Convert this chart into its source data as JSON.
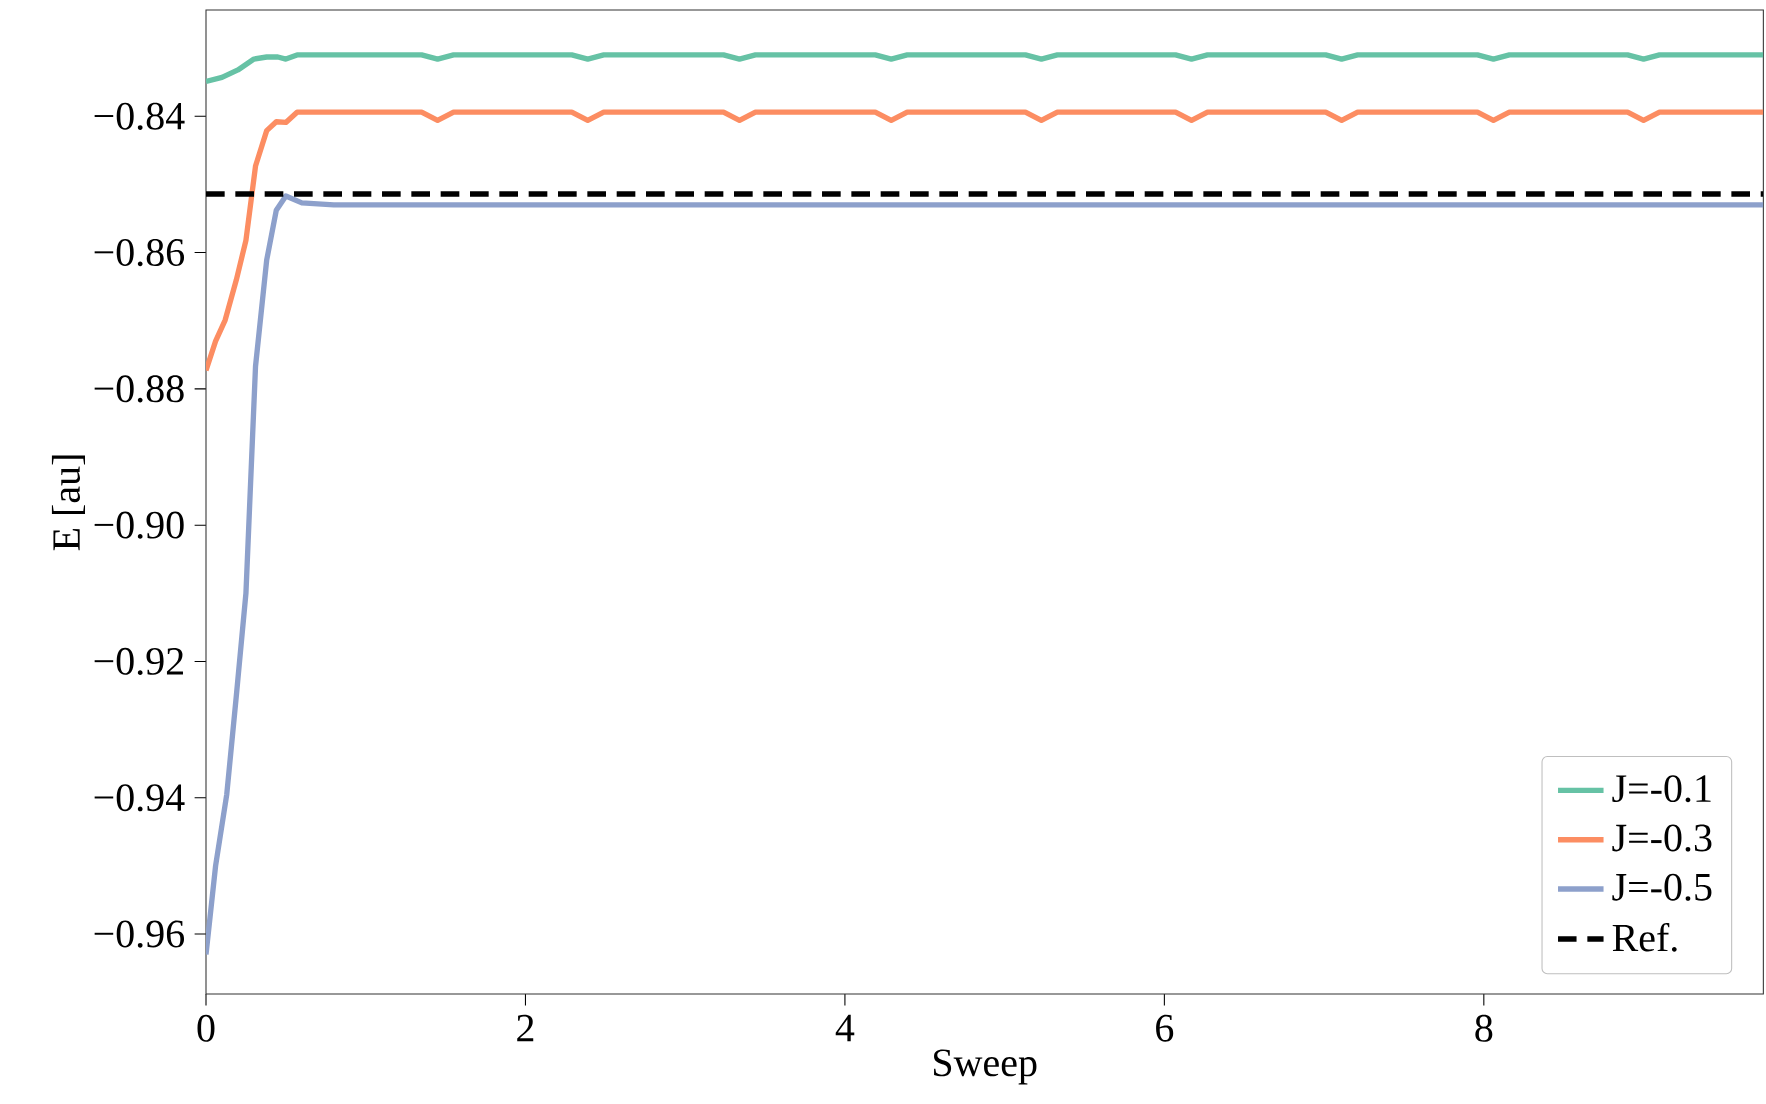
{
  "chart_data": {
    "type": "line",
    "xlabel": "Sweep",
    "ylabel": "E [au]",
    "xlim": [
      0,
      9.75
    ],
    "ylim": [
      -0.9688,
      -0.8244
    ],
    "xticks": [
      0,
      2,
      4,
      6,
      8
    ],
    "yticks": [
      {
        "value": -0.96,
        "label": "−0.96"
      },
      {
        "value": -0.94,
        "label": "−0.94"
      },
      {
        "value": -0.92,
        "label": "−0.92"
      },
      {
        "value": -0.9,
        "label": "−0.90"
      },
      {
        "value": -0.88,
        "label": "−0.88"
      },
      {
        "value": -0.86,
        "label": "−0.86"
      },
      {
        "value": -0.84,
        "label": "−0.84"
      }
    ],
    "series": [
      {
        "name": "J=-0.1",
        "color": "#66c2a5",
        "x": [
          0,
          0.1,
          0.2,
          0.3,
          0.38,
          0.45,
          0.5,
          0.57,
          1.35,
          1.45,
          1.55,
          2.29,
          2.39,
          2.49,
          3.24,
          3.34,
          3.44,
          4.19,
          4.29,
          4.39,
          5.13,
          5.23,
          5.33,
          6.07,
          6.17,
          6.27,
          7.01,
          7.11,
          7.21,
          7.96,
          8.06,
          8.16,
          8.9,
          9.0,
          9.1,
          9.75
        ],
        "values": [
          -0.8349,
          -0.8343,
          -0.8332,
          -0.8316,
          -0.8313,
          -0.8313,
          -0.8316,
          -0.831,
          -0.831,
          -0.8316,
          -0.831,
          -0.831,
          -0.8316,
          -0.831,
          -0.831,
          -0.8316,
          -0.831,
          -0.831,
          -0.8316,
          -0.831,
          -0.831,
          -0.8316,
          -0.831,
          -0.831,
          -0.8316,
          -0.831,
          -0.831,
          -0.8316,
          -0.831,
          -0.831,
          -0.8316,
          -0.831,
          -0.831,
          -0.8316,
          -0.831,
          -0.831
        ]
      },
      {
        "name": "J=-0.3",
        "color": "#fc8d62",
        "x": [
          0,
          0.06,
          0.12,
          0.19,
          0.25,
          0.31,
          0.38,
          0.44,
          0.5,
          0.57,
          1.35,
          1.45,
          1.55,
          2.29,
          2.39,
          2.49,
          3.24,
          3.34,
          3.44,
          4.19,
          4.29,
          4.39,
          5.13,
          5.23,
          5.33,
          6.07,
          6.17,
          6.27,
          7.01,
          7.11,
          7.21,
          7.96,
          8.06,
          8.16,
          8.9,
          9.0,
          9.1,
          9.75
        ],
        "values": [
          -0.8773,
          -0.873,
          -0.8699,
          -0.864,
          -0.8582,
          -0.8473,
          -0.8421,
          -0.8408,
          -0.8409,
          -0.8394,
          -0.8394,
          -0.8406,
          -0.8394,
          -0.8394,
          -0.8406,
          -0.8394,
          -0.8394,
          -0.8406,
          -0.8394,
          -0.8394,
          -0.8406,
          -0.8394,
          -0.8394,
          -0.8406,
          -0.8394,
          -0.8394,
          -0.8406,
          -0.8394,
          -0.8394,
          -0.8406,
          -0.8394,
          -0.8394,
          -0.8406,
          -0.8394,
          -0.8394,
          -0.8406,
          -0.8394,
          -0.8394
        ]
      },
      {
        "name": "J=-0.5",
        "color": "#8da0cb",
        "x": [
          0,
          0.06,
          0.13,
          0.19,
          0.25,
          0.31,
          0.38,
          0.44,
          0.5,
          0.6,
          0.8,
          9.75
        ],
        "values": [
          -0.963,
          -0.95,
          -0.9395,
          -0.925,
          -0.91,
          -0.8767,
          -0.8611,
          -0.8538,
          -0.8517,
          -0.8527,
          -0.853,
          -0.853
        ]
      }
    ],
    "ref_lines": [
      {
        "axis": "y",
        "value": -0.8514,
        "label": "Ref.",
        "color": "#000000",
        "line_style": "dashed"
      }
    ],
    "legend": "bottom right",
    "grid": false,
    "line_style": "solid",
    "marker": "none"
  }
}
